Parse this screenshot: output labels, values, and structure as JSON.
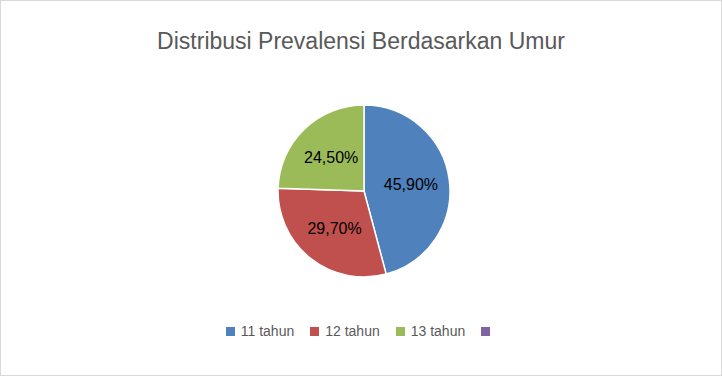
{
  "chart_data": {
    "type": "pie",
    "title": "Distribusi Prevalensi Berdasarkan Umur",
    "categories": [
      "11 tahun",
      "12 tahun",
      "13 tahun",
      null
    ],
    "values": [
      45.9,
      29.7,
      24.5,
      null
    ],
    "value_labels": [
      "45,90%",
      "29,70%",
      "24,50%",
      null
    ],
    "colors": [
      "#4f81bd",
      "#c0504d",
      "#9bbb59",
      "#8064a2"
    ],
    "data_labels": true,
    "legend": "bottom"
  }
}
